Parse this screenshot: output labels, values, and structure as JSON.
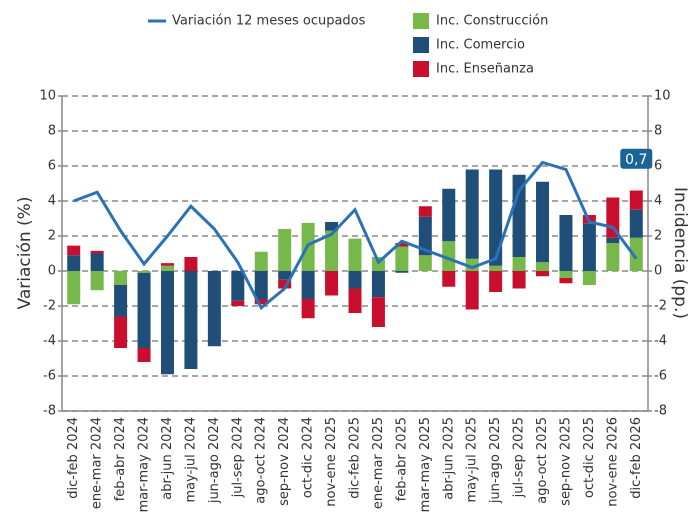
{
  "chart_data": {
    "type": "bar",
    "categories": [
      "dic-feb 2024",
      "ene-mar 2024",
      "feb-abr 2024",
      "mar-may 2024",
      "abr-jun 2024",
      "may-jul 2024",
      "jun-ago 2024",
      "jul-sep 2024",
      "ago-oct 2024",
      "sep-nov 2024",
      "oct-dic 2024",
      "nov-ene 2025",
      "dic-feb 2025",
      "ene-mar 2025",
      "feb-abr 2025",
      "mar-may 2025",
      "abr-jun 2025",
      "may-jul 2025",
      "jun-ago 2025",
      "jul-sep 2025",
      "ago-oct 2025",
      "sep-nov 2025",
      "oct-dic 2025",
      "nov-ene 2026",
      "dic-feb 2026"
    ],
    "series": [
      {
        "name": "Variación 12 meses ocupados",
        "type": "line",
        "color": "#2a72b5",
        "values": [
          4.0,
          4.5,
          2.3,
          0.4,
          2.0,
          3.7,
          2.4,
          0.5,
          -2.1,
          -1.0,
          1.5,
          2.1,
          3.5,
          0.5,
          1.7,
          1.2,
          0.7,
          0.2,
          0.7,
          4.6,
          6.2,
          5.8,
          2.8,
          2.5,
          0.7
        ],
        "value_labels": [
          null,
          null,
          null,
          null,
          null,
          null,
          null,
          null,
          null,
          null,
          null,
          null,
          null,
          null,
          null,
          null,
          null,
          null,
          null,
          null,
          null,
          null,
          null,
          null,
          "0,7"
        ]
      },
      {
        "name": "Inc. Construcción",
        "type": "bar",
        "color": "#77b84a",
        "values": [
          -1.9,
          -1.1,
          -0.8,
          -0.1,
          0.3,
          0,
          0,
          0,
          1.1,
          2.4,
          2.75,
          2.3,
          1.85,
          0.8,
          1.4,
          0.9,
          1.7,
          0.7,
          0.3,
          0.8,
          0.5,
          -0.4,
          -0.8,
          1.6,
          1.9
        ]
      },
      {
        "name": "Inc. Comercio",
        "type": "bar",
        "color": "#1f4e79",
        "values": [
          0.9,
          1.0,
          -1.8,
          -4.3,
          -5.9,
          -5.6,
          -4.3,
          -1.7,
          -1.6,
          -0.5,
          -1.6,
          0.5,
          -1.0,
          -1.5,
          -0.1,
          2.2,
          3.0,
          5.1,
          5.5,
          4.7,
          4.6,
          3.2,
          2.7,
          0.3,
          1.6
        ]
      },
      {
        "name": "Inc. Enseñanza",
        "type": "bar",
        "color": "#c8102e",
        "values": [
          0.55,
          0.15,
          -1.8,
          -0.8,
          0.15,
          0.8,
          0,
          -0.3,
          -0.3,
          -0.5,
          -1.1,
          -1.4,
          -1.4,
          -1.7,
          0.2,
          0.6,
          -0.9,
          -2.2,
          -1.2,
          -1.0,
          -0.3,
          -0.3,
          0.5,
          2.3,
          1.1
        ]
      }
    ],
    "ylabel": "Variación (%)",
    "y2label": "Incidencia (pp.)",
    "ylim": [
      -8,
      10
    ],
    "yticks": [
      -8,
      -6,
      -4,
      -2,
      0,
      2,
      4,
      6,
      8,
      10
    ],
    "y2lim": [
      -8,
      10
    ],
    "y2ticks": [
      -8,
      -6,
      -4,
      -2,
      0,
      2,
      4,
      6,
      8,
      10
    ],
    "grid": true,
    "legend": "top"
  }
}
